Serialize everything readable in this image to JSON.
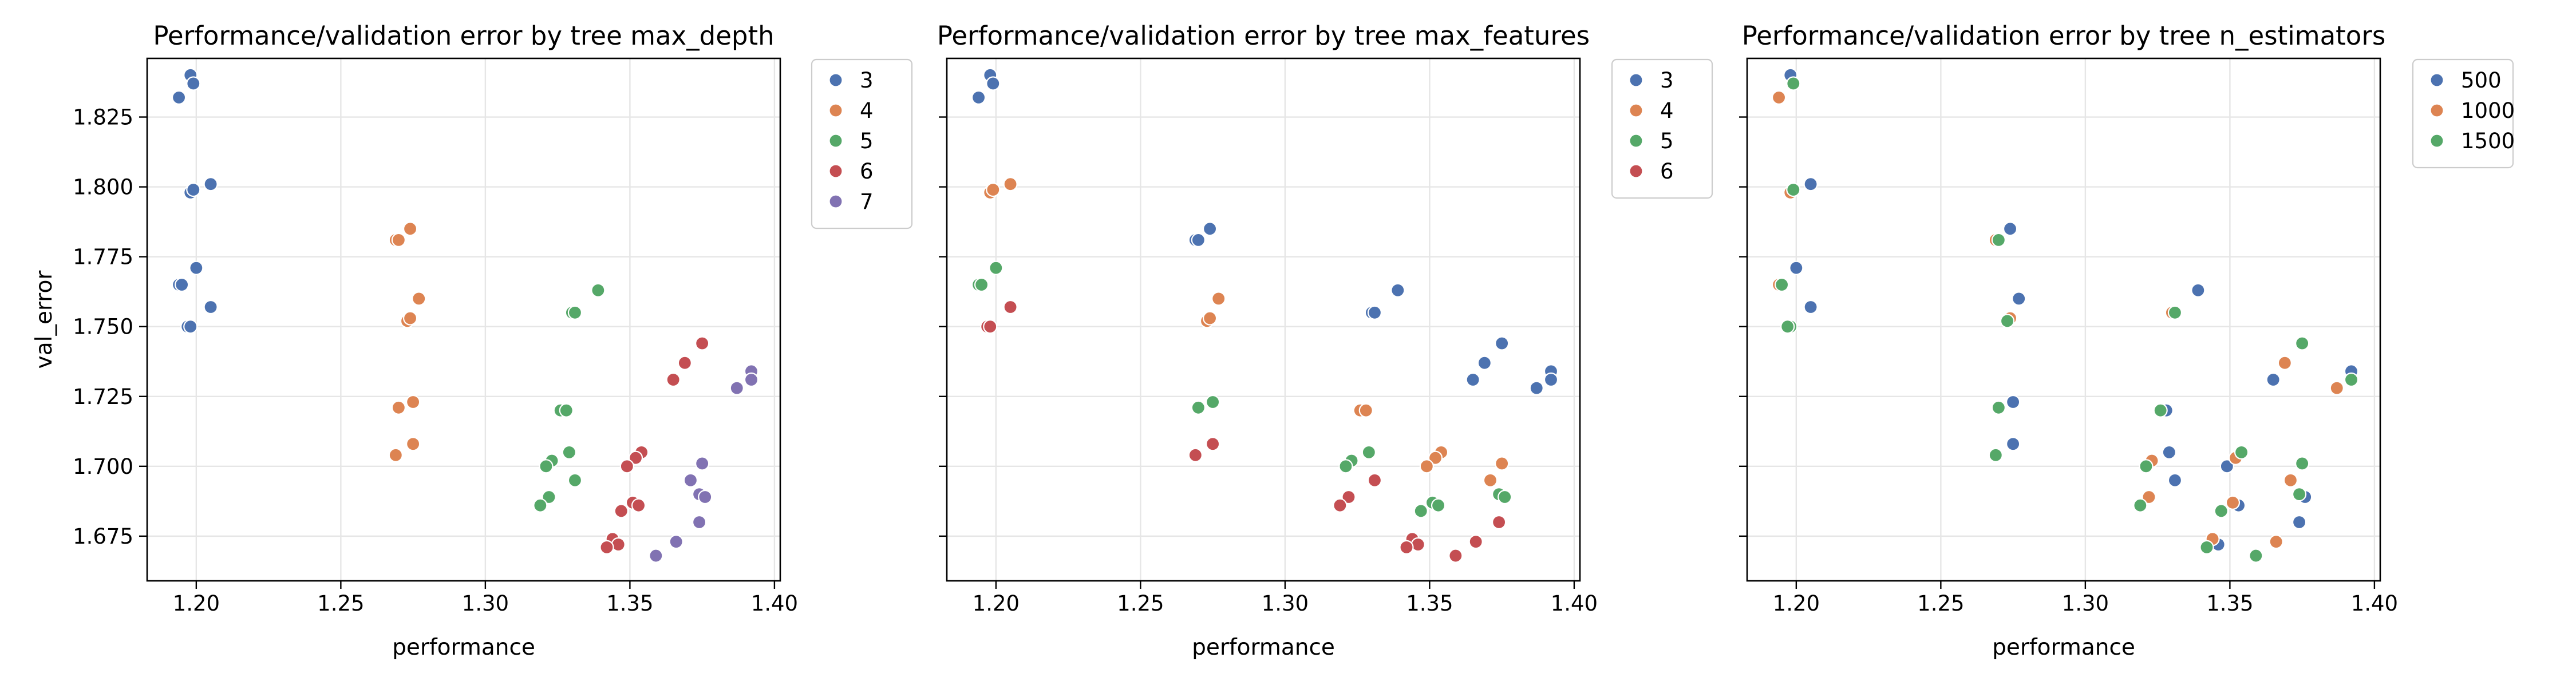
{
  "chart_data": [
    {
      "type": "scatter",
      "title": "Performance/validation error by tree max_depth",
      "xlabel": "performance",
      "ylabel": "val_error",
      "xlim": [
        1.183,
        1.402
      ],
      "ylim": [
        1.659,
        1.846
      ],
      "xticks": [
        1.2,
        1.25,
        1.3,
        1.35,
        1.4
      ],
      "yticks": [
        1.675,
        1.7,
        1.725,
        1.75,
        1.775,
        1.8,
        1.825
      ],
      "grid": true,
      "legend": "outside-right",
      "series": [
        {
          "name": "3",
          "color": "#4c72b0",
          "points": [
            [
              1.194,
              1.832
            ],
            [
              1.198,
              1.84
            ],
            [
              1.199,
              1.837
            ],
            [
              1.198,
              1.798
            ],
            [
              1.199,
              1.799
            ],
            [
              1.205,
              1.801
            ],
            [
              1.2,
              1.771
            ],
            [
              1.194,
              1.765
            ],
            [
              1.195,
              1.765
            ],
            [
              1.205,
              1.757
            ],
            [
              1.197,
              1.75
            ],
            [
              1.198,
              1.75
            ]
          ]
        },
        {
          "name": "4",
          "color": "#dd8452",
          "points": [
            [
              1.269,
              1.781
            ],
            [
              1.27,
              1.781
            ],
            [
              1.274,
              1.785
            ],
            [
              1.277,
              1.76
            ],
            [
              1.273,
              1.752
            ],
            [
              1.274,
              1.753
            ],
            [
              1.27,
              1.721
            ],
            [
              1.275,
              1.723
            ],
            [
              1.269,
              1.704
            ],
            [
              1.275,
              1.708
            ]
          ]
        },
        {
          "name": "5",
          "color": "#55a868",
          "points": [
            [
              1.33,
              1.755
            ],
            [
              1.331,
              1.755
            ],
            [
              1.339,
              1.763
            ],
            [
              1.326,
              1.72
            ],
            [
              1.328,
              1.72
            ],
            [
              1.323,
              1.702
            ],
            [
              1.321,
              1.7
            ],
            [
              1.329,
              1.705
            ],
            [
              1.331,
              1.695
            ],
            [
              1.322,
              1.689
            ],
            [
              1.319,
              1.686
            ]
          ]
        },
        {
          "name": "6",
          "color": "#c44e52",
          "points": [
            [
              1.375,
              1.744
            ],
            [
              1.369,
              1.737
            ],
            [
              1.365,
              1.731
            ],
            [
              1.354,
              1.705
            ],
            [
              1.352,
              1.703
            ],
            [
              1.349,
              1.7
            ],
            [
              1.351,
              1.687
            ],
            [
              1.353,
              1.686
            ],
            [
              1.347,
              1.684
            ],
            [
              1.344,
              1.674
            ],
            [
              1.346,
              1.672
            ],
            [
              1.342,
              1.671
            ]
          ]
        },
        {
          "name": "7",
          "color": "#8172b2",
          "points": [
            [
              1.392,
              1.734
            ],
            [
              1.392,
              1.731
            ],
            [
              1.387,
              1.728
            ],
            [
              1.375,
              1.701
            ],
            [
              1.371,
              1.695
            ],
            [
              1.374,
              1.69
            ],
            [
              1.376,
              1.689
            ],
            [
              1.374,
              1.68
            ],
            [
              1.366,
              1.673
            ],
            [
              1.359,
              1.668
            ]
          ]
        }
      ]
    },
    {
      "type": "scatter",
      "title": "Performance/validation error by tree max_features",
      "xlabel": "performance",
      "ylabel": "",
      "xlim": [
        1.183,
        1.402
      ],
      "ylim": [
        1.659,
        1.846
      ],
      "xticks": [
        1.2,
        1.25,
        1.3,
        1.35,
        1.4
      ],
      "yticks": [
        1.675,
        1.7,
        1.725,
        1.75,
        1.775,
        1.8,
        1.825
      ],
      "grid": true,
      "legend": "outside-right",
      "series": [
        {
          "name": "3",
          "color": "#4c72b0",
          "points": [
            [
              1.194,
              1.832
            ],
            [
              1.198,
              1.84
            ],
            [
              1.199,
              1.837
            ],
            [
              1.269,
              1.781
            ],
            [
              1.27,
              1.781
            ],
            [
              1.274,
              1.785
            ],
            [
              1.33,
              1.755
            ],
            [
              1.331,
              1.755
            ],
            [
              1.339,
              1.763
            ],
            [
              1.375,
              1.744
            ],
            [
              1.369,
              1.737
            ],
            [
              1.365,
              1.731
            ],
            [
              1.392,
              1.734
            ],
            [
              1.392,
              1.731
            ],
            [
              1.387,
              1.728
            ]
          ]
        },
        {
          "name": "4",
          "color": "#dd8452",
          "points": [
            [
              1.198,
              1.798
            ],
            [
              1.199,
              1.799
            ],
            [
              1.205,
              1.801
            ],
            [
              1.277,
              1.76
            ],
            [
              1.273,
              1.752
            ],
            [
              1.274,
              1.753
            ],
            [
              1.326,
              1.72
            ],
            [
              1.328,
              1.72
            ],
            [
              1.354,
              1.705
            ],
            [
              1.352,
              1.703
            ],
            [
              1.349,
              1.7
            ],
            [
              1.375,
              1.701
            ],
            [
              1.371,
              1.695
            ]
          ]
        },
        {
          "name": "5",
          "color": "#55a868",
          "points": [
            [
              1.2,
              1.771
            ],
            [
              1.194,
              1.765
            ],
            [
              1.195,
              1.765
            ],
            [
              1.27,
              1.721
            ],
            [
              1.275,
              1.723
            ],
            [
              1.323,
              1.702
            ],
            [
              1.321,
              1.7
            ],
            [
              1.329,
              1.705
            ],
            [
              1.351,
              1.687
            ],
            [
              1.353,
              1.686
            ],
            [
              1.347,
              1.684
            ],
            [
              1.374,
              1.69
            ],
            [
              1.376,
              1.689
            ]
          ]
        },
        {
          "name": "6",
          "color": "#c44e52",
          "points": [
            [
              1.205,
              1.757
            ],
            [
              1.197,
              1.75
            ],
            [
              1.198,
              1.75
            ],
            [
              1.269,
              1.704
            ],
            [
              1.275,
              1.708
            ],
            [
              1.331,
              1.695
            ],
            [
              1.322,
              1.689
            ],
            [
              1.319,
              1.686
            ],
            [
              1.344,
              1.674
            ],
            [
              1.346,
              1.672
            ],
            [
              1.342,
              1.671
            ],
            [
              1.374,
              1.68
            ],
            [
              1.366,
              1.673
            ],
            [
              1.359,
              1.668
            ]
          ]
        }
      ]
    },
    {
      "type": "scatter",
      "title": "Performance/validation error by tree n_estimators",
      "xlabel": "performance",
      "ylabel": "",
      "xlim": [
        1.183,
        1.402
      ],
      "ylim": [
        1.659,
        1.846
      ],
      "xticks": [
        1.2,
        1.25,
        1.3,
        1.35,
        1.4
      ],
      "yticks": [
        1.675,
        1.7,
        1.725,
        1.75,
        1.775,
        1.8,
        1.825
      ],
      "grid": true,
      "legend": "outside-right",
      "series": [
        {
          "name": "500",
          "color": "#4c72b0",
          "points": [
            [
              1.198,
              1.84
            ],
            [
              1.205,
              1.801
            ],
            [
              1.2,
              1.771
            ],
            [
              1.205,
              1.757
            ],
            [
              1.274,
              1.785
            ],
            [
              1.277,
              1.76
            ],
            [
              1.275,
              1.723
            ],
            [
              1.275,
              1.708
            ],
            [
              1.339,
              1.763
            ],
            [
              1.328,
              1.72
            ],
            [
              1.329,
              1.705
            ],
            [
              1.331,
              1.695
            ],
            [
              1.365,
              1.731
            ],
            [
              1.392,
              1.734
            ],
            [
              1.349,
              1.7
            ],
            [
              1.353,
              1.686
            ],
            [
              1.346,
              1.672
            ],
            [
              1.376,
              1.689
            ],
            [
              1.374,
              1.68
            ]
          ]
        },
        {
          "name": "1000",
          "color": "#dd8452",
          "points": [
            [
              1.194,
              1.832
            ],
            [
              1.198,
              1.798
            ],
            [
              1.194,
              1.765
            ],
            [
              1.269,
              1.781
            ],
            [
              1.274,
              1.753
            ],
            [
              1.33,
              1.755
            ],
            [
              1.323,
              1.702
            ],
            [
              1.322,
              1.689
            ],
            [
              1.369,
              1.737
            ],
            [
              1.387,
              1.728
            ],
            [
              1.352,
              1.703
            ],
            [
              1.351,
              1.687
            ],
            [
              1.344,
              1.674
            ],
            [
              1.371,
              1.695
            ],
            [
              1.366,
              1.673
            ]
          ]
        },
        {
          "name": "1500",
          "color": "#55a868",
          "points": [
            [
              1.199,
              1.837
            ],
            [
              1.199,
              1.799
            ],
            [
              1.195,
              1.765
            ],
            [
              1.198,
              1.75
            ],
            [
              1.197,
              1.75
            ],
            [
              1.27,
              1.781
            ],
            [
              1.273,
              1.752
            ],
            [
              1.27,
              1.721
            ],
            [
              1.269,
              1.704
            ],
            [
              1.331,
              1.755
            ],
            [
              1.326,
              1.72
            ],
            [
              1.321,
              1.7
            ],
            [
              1.319,
              1.686
            ],
            [
              1.375,
              1.744
            ],
            [
              1.392,
              1.731
            ],
            [
              1.354,
              1.705
            ],
            [
              1.347,
              1.684
            ],
            [
              1.342,
              1.671
            ],
            [
              1.375,
              1.701
            ],
            [
              1.374,
              1.69
            ],
            [
              1.359,
              1.668
            ]
          ]
        }
      ]
    }
  ]
}
